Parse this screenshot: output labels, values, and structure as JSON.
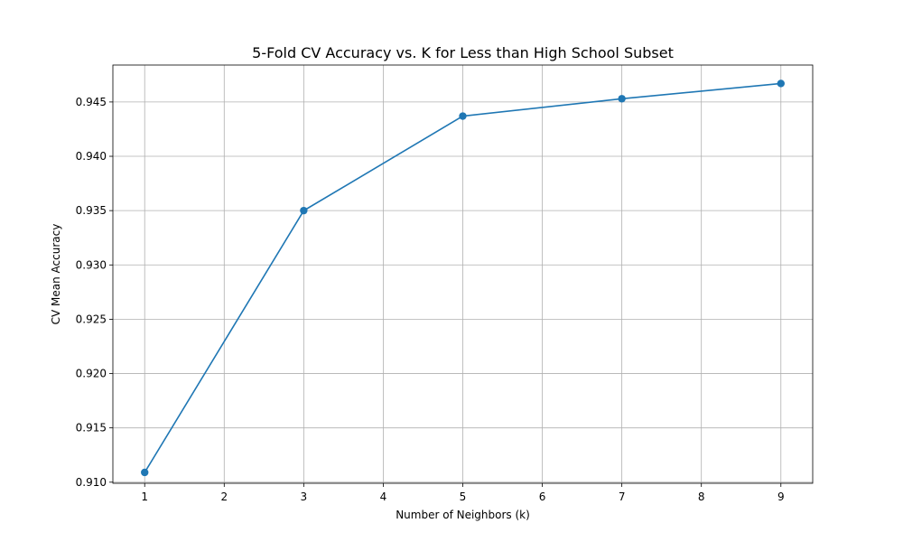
{
  "chart_data": {
    "type": "line",
    "title": "5-Fold CV Accuracy vs. K for Less than High School Subset",
    "xlabel": "Number of Neighbors (k)",
    "ylabel": "CV Mean Accuracy",
    "x": [
      1,
      3,
      5,
      7,
      9
    ],
    "series": [
      {
        "values": [
          0.9109,
          0.935,
          0.9437,
          0.9453,
          0.9467
        ]
      }
    ],
    "xlim": [
      0.6,
      9.4
    ],
    "ylim": [
      0.9099,
      0.9484
    ],
    "xticks": [
      1,
      2,
      3,
      4,
      5,
      6,
      7,
      8,
      9
    ],
    "yticks": [
      0.91,
      0.915,
      0.92,
      0.925,
      0.93,
      0.935,
      0.94,
      0.945
    ],
    "ytick_labels": [
      "0.910",
      "0.915",
      "0.920",
      "0.925",
      "0.930",
      "0.935",
      "0.940",
      "0.945"
    ],
    "grid": true,
    "line_color": "#1f77b4",
    "marker": "circle"
  }
}
